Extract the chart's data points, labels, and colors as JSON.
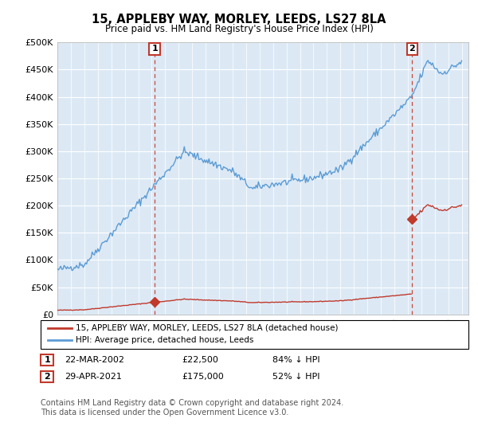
{
  "title": "15, APPLEBY WAY, MORLEY, LEEDS, LS27 8LA",
  "subtitle": "Price paid vs. HM Land Registry's House Price Index (HPI)",
  "hpi_color": "#5b9bd5",
  "price_color": "#c0392b",
  "background_color": "#ffffff",
  "plot_bg_color": "#dce9f5",
  "grid_color": "#ffffff",
  "ylim": [
    0,
    500000
  ],
  "yticks": [
    0,
    50000,
    100000,
    150000,
    200000,
    250000,
    300000,
    350000,
    400000,
    450000,
    500000
  ],
  "ytick_labels": [
    "£0",
    "£50K",
    "£100K",
    "£150K",
    "£200K",
    "£250K",
    "£300K",
    "£350K",
    "£400K",
    "£450K",
    "£500K"
  ],
  "t1": 2002.22,
  "t2": 2021.33,
  "price1": 22500,
  "price2": 175000,
  "transaction1_date": "22-MAR-2002",
  "transaction1_price": "£22,500",
  "transaction1_hpi": "84% ↓ HPI",
  "transaction2_date": "29-APR-2021",
  "transaction2_price": "£175,000",
  "transaction2_hpi": "52% ↓ HPI",
  "legend_label1": "15, APPLEBY WAY, MORLEY, LEEDS, LS27 8LA (detached house)",
  "legend_label2": "HPI: Average price, detached house, Leeds",
  "footnote": "Contains HM Land Registry data © Crown copyright and database right 2024.\nThis data is licensed under the Open Government Licence v3.0.",
  "xlim_start": 1995,
  "xlim_end": 2025.5
}
